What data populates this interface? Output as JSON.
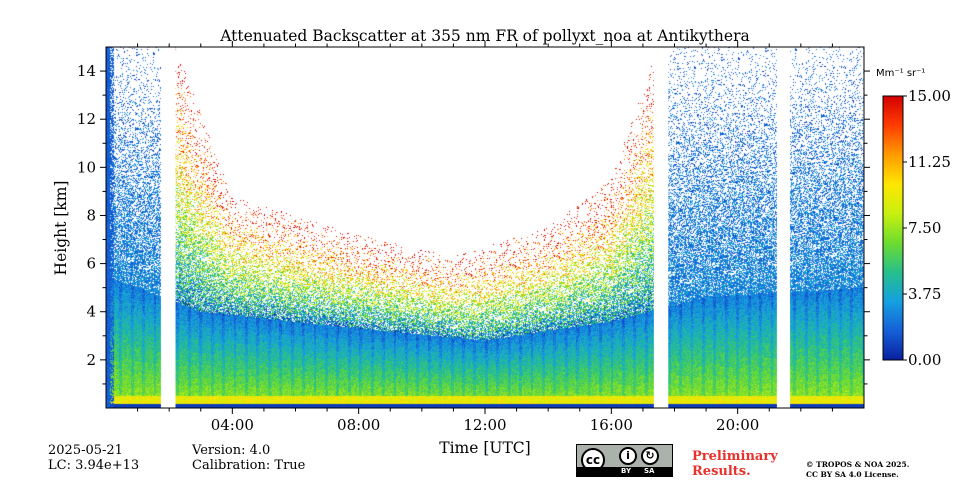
{
  "chart_data": {
    "type": "heatmap",
    "title": "Attenuated Backscatter at 355 nm FR of pollyxt_noa at Antikythera",
    "xlabel": "Time [UTC]",
    "ylabel": "Height [km]",
    "xlim_hours": [
      0,
      24
    ],
    "ylim_km": [
      0,
      15
    ],
    "x_ticks": [
      {
        "hour": 4,
        "label": "04:00"
      },
      {
        "hour": 8,
        "label": "08:00"
      },
      {
        "hour": 12,
        "label": "12:00"
      },
      {
        "hour": 16,
        "label": "16:00"
      },
      {
        "hour": 20,
        "label": "20:00"
      }
    ],
    "y_ticks": [
      {
        "km": 2,
        "label": "2"
      },
      {
        "km": 4,
        "label": "4"
      },
      {
        "km": 6,
        "label": "6"
      },
      {
        "km": 8,
        "label": "8"
      },
      {
        "km": 10,
        "label": "10"
      },
      {
        "km": 12,
        "label": "12"
      },
      {
        "km": 14,
        "label": "14"
      }
    ],
    "colorbar": {
      "unit": "Mm⁻¹ sr⁻¹",
      "min": 0.0,
      "max": 15.0,
      "ticks": [
        "0.00",
        "3.75",
        "7.50",
        "11.25",
        "15.00"
      ],
      "colormap": [
        "#0a1f9e",
        "#1560d8",
        "#15a0e0",
        "#27c08a",
        "#6edc2e",
        "#c8f010",
        "#ffe600",
        "#ff9a00",
        "#ff3c00",
        "#d40000"
      ]
    },
    "data_gaps_hours": [
      [
        1.75,
        2.2
      ],
      [
        17.35,
        17.8
      ],
      [
        21.25,
        21.65
      ]
    ],
    "signal_top_km": [
      [
        0,
        15
      ],
      [
        2.2,
        15
      ],
      [
        4,
        8.8
      ],
      [
        8,
        7.2
      ],
      [
        11,
        6.3
      ],
      [
        14,
        7.5
      ],
      [
        16,
        9.5
      ],
      [
        17.35,
        14.5
      ],
      [
        17.8,
        15
      ],
      [
        24,
        15
      ]
    ],
    "dense_layer_top_km": [
      [
        0,
        5.5
      ],
      [
        3,
        4.0
      ],
      [
        8,
        3.3
      ],
      [
        12,
        2.8
      ],
      [
        16,
        3.6
      ],
      [
        19,
        4.6
      ],
      [
        24,
        5.0
      ]
    ]
  },
  "footer": {
    "date": "2025-05-21",
    "lc": "LC: 3.94e+13",
    "version": "Version: 4.0",
    "calibration": "Calibration: True",
    "badge_cc": "cc",
    "badge_by": "BY",
    "badge_sa": "SA",
    "preliminary_line1": "Preliminary",
    "preliminary_line2": "Results.",
    "copyright_line1": "© TROPOS & NOA 2025.",
    "copyright_line2": "CC BY SA 4.0 License."
  }
}
